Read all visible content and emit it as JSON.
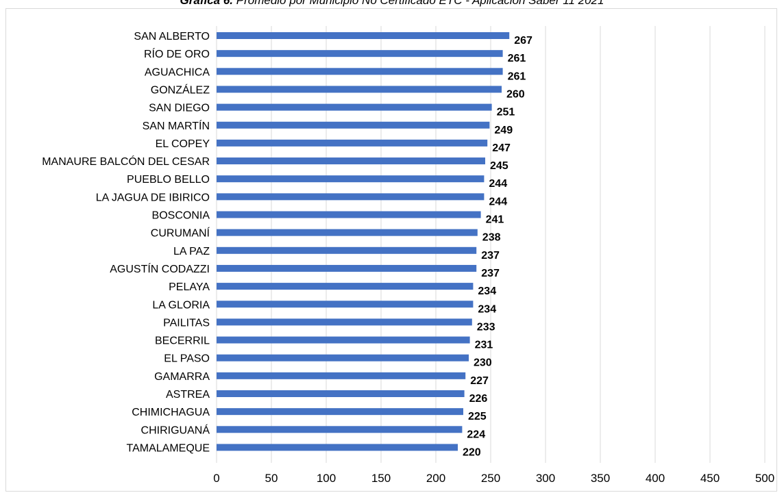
{
  "caption": {
    "bold": "Gráfica 6.",
    "text": " Promedio por Municipio No Certificado ETC - Aplicación Saber 11 2021"
  },
  "colors": {
    "bar": "#4472c4",
    "grid": "#d9d9d9"
  },
  "chart_data": {
    "type": "bar",
    "orientation": "horizontal",
    "categories": [
      "SAN ALBERTO",
      "RÍO DE ORO",
      "AGUACHICA",
      "GONZÁLEZ",
      "SAN DIEGO",
      "SAN MARTÍN",
      "EL COPEY",
      "MANAURE BALCÓN DEL CESAR",
      "PUEBLO BELLO",
      "LA JAGUA DE IBIRICO",
      "BOSCONIA",
      "CURUMANÍ",
      "LA PAZ",
      "AGUSTÍN CODAZZI",
      "PELAYA",
      "LA GLORIA",
      "PAILITAS",
      "BECERRIL",
      "EL PASO",
      "GAMARRA",
      "ASTREA",
      "CHIMICHAGUA",
      "CHIRIGUANÁ",
      "TAMALAMEQUE"
    ],
    "values": [
      267,
      261,
      261,
      260,
      251,
      249,
      247,
      245,
      244,
      244,
      241,
      238,
      237,
      237,
      234,
      234,
      233,
      231,
      230,
      227,
      226,
      225,
      224,
      220
    ],
    "xlim": [
      0,
      500
    ],
    "xticks": [
      0,
      50,
      100,
      150,
      200,
      250,
      300,
      350,
      400,
      450,
      500
    ],
    "grid": true,
    "data_labels": true
  }
}
